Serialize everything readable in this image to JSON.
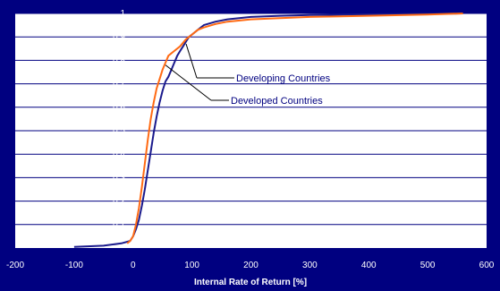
{
  "chart_data": {
    "type": "line",
    "title": "",
    "xlabel": "Internal Rate of Return [%]",
    "ylabel": "",
    "xlim": [
      -200,
      600
    ],
    "ylim": [
      0,
      1
    ],
    "xticks": [
      -200,
      -100,
      0,
      100,
      200,
      300,
      400,
      500,
      600
    ],
    "yticks": [
      0.1,
      0.2,
      0.3,
      0.4,
      0.5,
      0.6,
      0.7,
      0.8,
      0.9,
      1
    ],
    "ytick_labels": [
      "0,1",
      "0,2",
      "0,3",
      "0,4",
      "0,5",
      "0,6",
      "0,7",
      "0,8",
      "0,9",
      "1"
    ],
    "grid": "horizontal",
    "colors": {
      "background": "#000080",
      "plot_area": "#ffffff",
      "developing": "#1a1a8c",
      "developed": "#ff6a13",
      "text": "#ffffff",
      "annotation_text": "#000080"
    },
    "series": [
      {
        "name": "Developing Countries",
        "color": "#1a1a8c",
        "x": [
          -100,
          -50,
          -20,
          -5,
          0,
          5,
          10,
          15,
          20,
          25,
          30,
          35,
          40,
          45,
          50,
          55,
          60,
          65,
          70,
          75,
          80,
          85,
          90,
          95,
          100,
          110,
          120,
          140,
          160,
          200,
          250,
          300,
          400,
          500,
          560
        ],
        "y": [
          0.005,
          0.01,
          0.02,
          0.03,
          0.05,
          0.08,
          0.12,
          0.18,
          0.25,
          0.33,
          0.41,
          0.49,
          0.56,
          0.62,
          0.67,
          0.71,
          0.73,
          0.76,
          0.79,
          0.82,
          0.84,
          0.86,
          0.88,
          0.9,
          0.91,
          0.93,
          0.95,
          0.965,
          0.975,
          0.985,
          0.99,
          0.993,
          0.996,
          0.998,
          1.0
        ]
      },
      {
        "name": "Developed Countries",
        "color": "#ff6a13",
        "x": [
          -10,
          -5,
          0,
          5,
          10,
          15,
          20,
          25,
          30,
          35,
          40,
          45,
          50,
          55,
          60,
          70,
          80,
          90,
          100,
          110,
          120,
          140,
          160,
          200,
          300,
          400,
          500,
          560
        ],
        "y": [
          0.02,
          0.03,
          0.05,
          0.1,
          0.17,
          0.26,
          0.36,
          0.46,
          0.55,
          0.62,
          0.68,
          0.72,
          0.76,
          0.79,
          0.82,
          0.84,
          0.86,
          0.89,
          0.91,
          0.93,
          0.94,
          0.955,
          0.965,
          0.975,
          0.985,
          0.99,
          0.995,
          1.0
        ]
      }
    ],
    "annotations": [
      {
        "text": "Developing Countries",
        "series": "Developing Countries"
      },
      {
        "text": "Developed Countries",
        "series": "Developed Countries"
      }
    ]
  }
}
